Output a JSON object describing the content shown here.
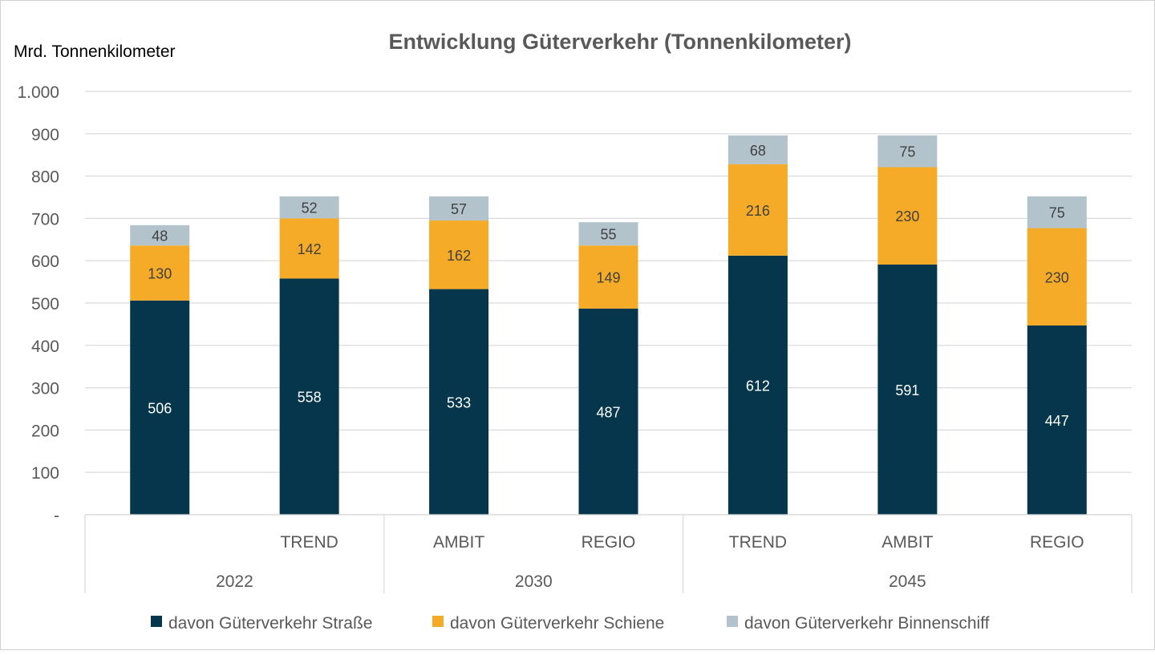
{
  "chart_data": {
    "type": "bar",
    "stacked": true,
    "title": "Entwicklung Güterverkehr (Tonnenkilometer)",
    "ylabel": "Mrd. Tonnenkilometer",
    "xlabel": "",
    "ylim": [
      0,
      1000
    ],
    "yticks": [
      0,
      100,
      200,
      300,
      400,
      500,
      600,
      700,
      800,
      900,
      1000
    ],
    "ytick_labels": [
      "-",
      "100",
      "200",
      "300",
      "400",
      "500",
      "600",
      "700",
      "800",
      "900",
      "1.000"
    ],
    "grid": true,
    "legend_position": "bottom",
    "categories": [
      "",
      "TREND",
      "AMBIT",
      "REGIO",
      "TREND",
      "AMBIT",
      "REGIO"
    ],
    "groups": [
      {
        "label": "2022",
        "count": 2
      },
      {
        "label": "2030",
        "count": 2
      },
      {
        "label": "2045",
        "count": 3
      }
    ],
    "series": [
      {
        "name": "davon Güterverkehr Straße",
        "color": "#05364b",
        "label_color": "#ffffff",
        "values": [
          506,
          558,
          533,
          487,
          612,
          591,
          447
        ]
      },
      {
        "name": "davon Güterverkehr Schiene",
        "color": "#f5ab27",
        "label_color": "#404040",
        "values": [
          130,
          142,
          162,
          149,
          216,
          230,
          230
        ]
      },
      {
        "name": "davon Güterverkehr Binnenschiff",
        "color": "#b2c3cc",
        "label_color": "#404040",
        "values": [
          48,
          52,
          57,
          55,
          68,
          75,
          75
        ]
      }
    ]
  }
}
